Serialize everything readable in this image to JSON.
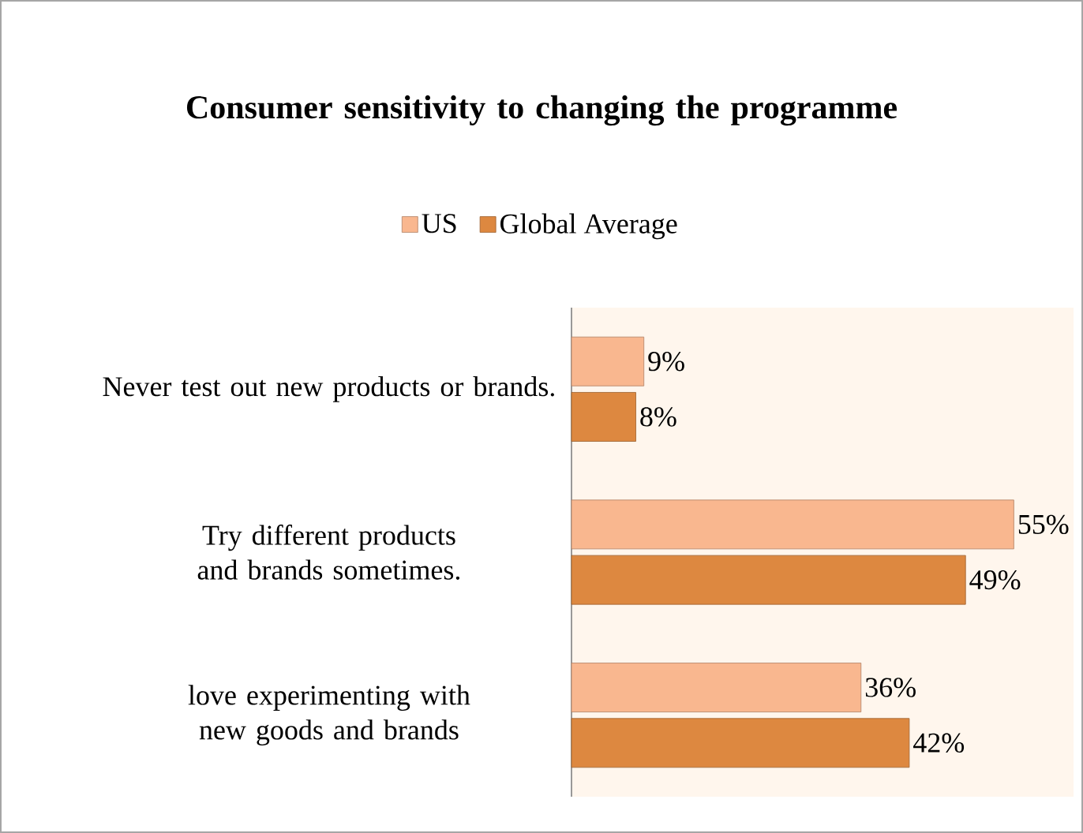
{
  "chart_data": {
    "type": "bar",
    "orientation": "horizontal",
    "title": "Consumer sensitivity to changing the programme",
    "categories": [
      "Never test out new products or brands.",
      "Try different products and brands sometimes.",
      "love experimenting with new goods and brands"
    ],
    "series": [
      {
        "name": "US",
        "color": "#f9b78f",
        "values": [
          9,
          55,
          36
        ],
        "value_labels": [
          "9%",
          "55%",
          "36%"
        ]
      },
      {
        "name": "Global Average",
        "color": "#dd8840",
        "values": [
          8,
          49,
          42
        ],
        "value_labels": [
          "8%",
          "49%",
          "42%"
        ]
      }
    ],
    "legend": "top"
  }
}
